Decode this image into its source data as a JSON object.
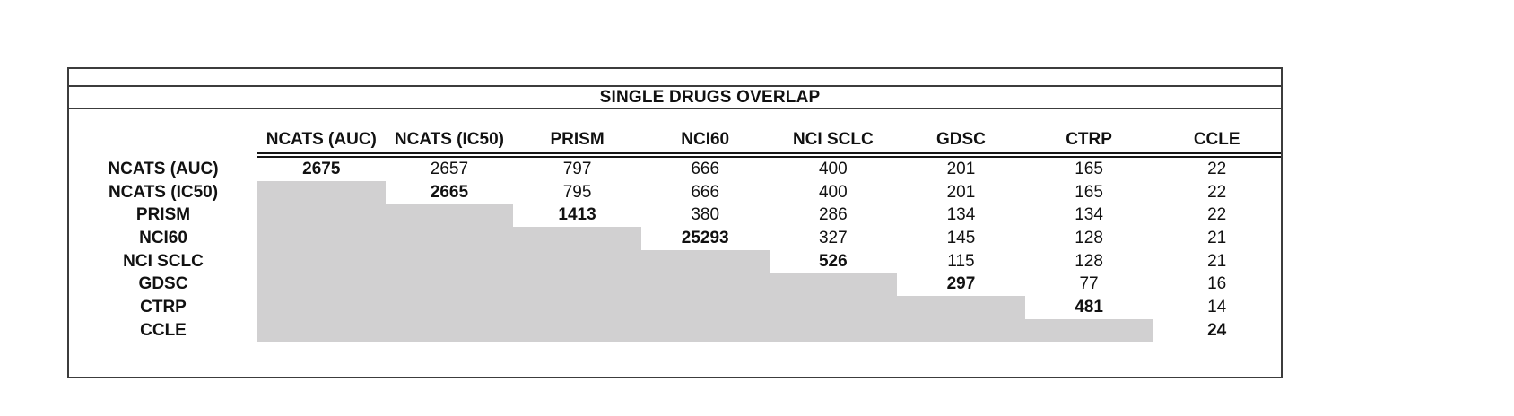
{
  "chart_data": {
    "type": "table",
    "title": "SINGLE DRUGS OVERLAP",
    "columns": [
      "NCATS (AUC)",
      "NCATS (IC50)",
      "PRISM",
      "NCI60",
      "NCI SCLC",
      "GDSC",
      "CTRP",
      "CCLE"
    ],
    "row_labels": [
      "NCATS (AUC)",
      "NCATS (IC50)",
      "PRISM",
      "NCI60",
      "NCI SCLC",
      "GDSC",
      "CTRP",
      "CCLE"
    ],
    "matrix": [
      [
        2675,
        2657,
        797,
        666,
        400,
        201,
        165,
        22
      ],
      [
        null,
        2665,
        795,
        666,
        400,
        201,
        165,
        22
      ],
      [
        null,
        null,
        1413,
        380,
        286,
        134,
        134,
        22
      ],
      [
        null,
        null,
        null,
        25293,
        327,
        145,
        128,
        21
      ],
      [
        null,
        null,
        null,
        null,
        526,
        115,
        128,
        21
      ],
      [
        null,
        null,
        null,
        null,
        null,
        297,
        77,
        16
      ],
      [
        null,
        null,
        null,
        null,
        null,
        null,
        481,
        14
      ],
      [
        null,
        null,
        null,
        null,
        null,
        null,
        null,
        24
      ]
    ],
    "layout_hints": {
      "diagonal_values_bold": true,
      "lower_triangle_shaded": true,
      "header_double_underline": true
    },
    "colors": {
      "lower_triangle_fill": "#d1d0d1",
      "border": "#3c3c3c",
      "text": "#111111",
      "background": "#ffffff"
    }
  }
}
